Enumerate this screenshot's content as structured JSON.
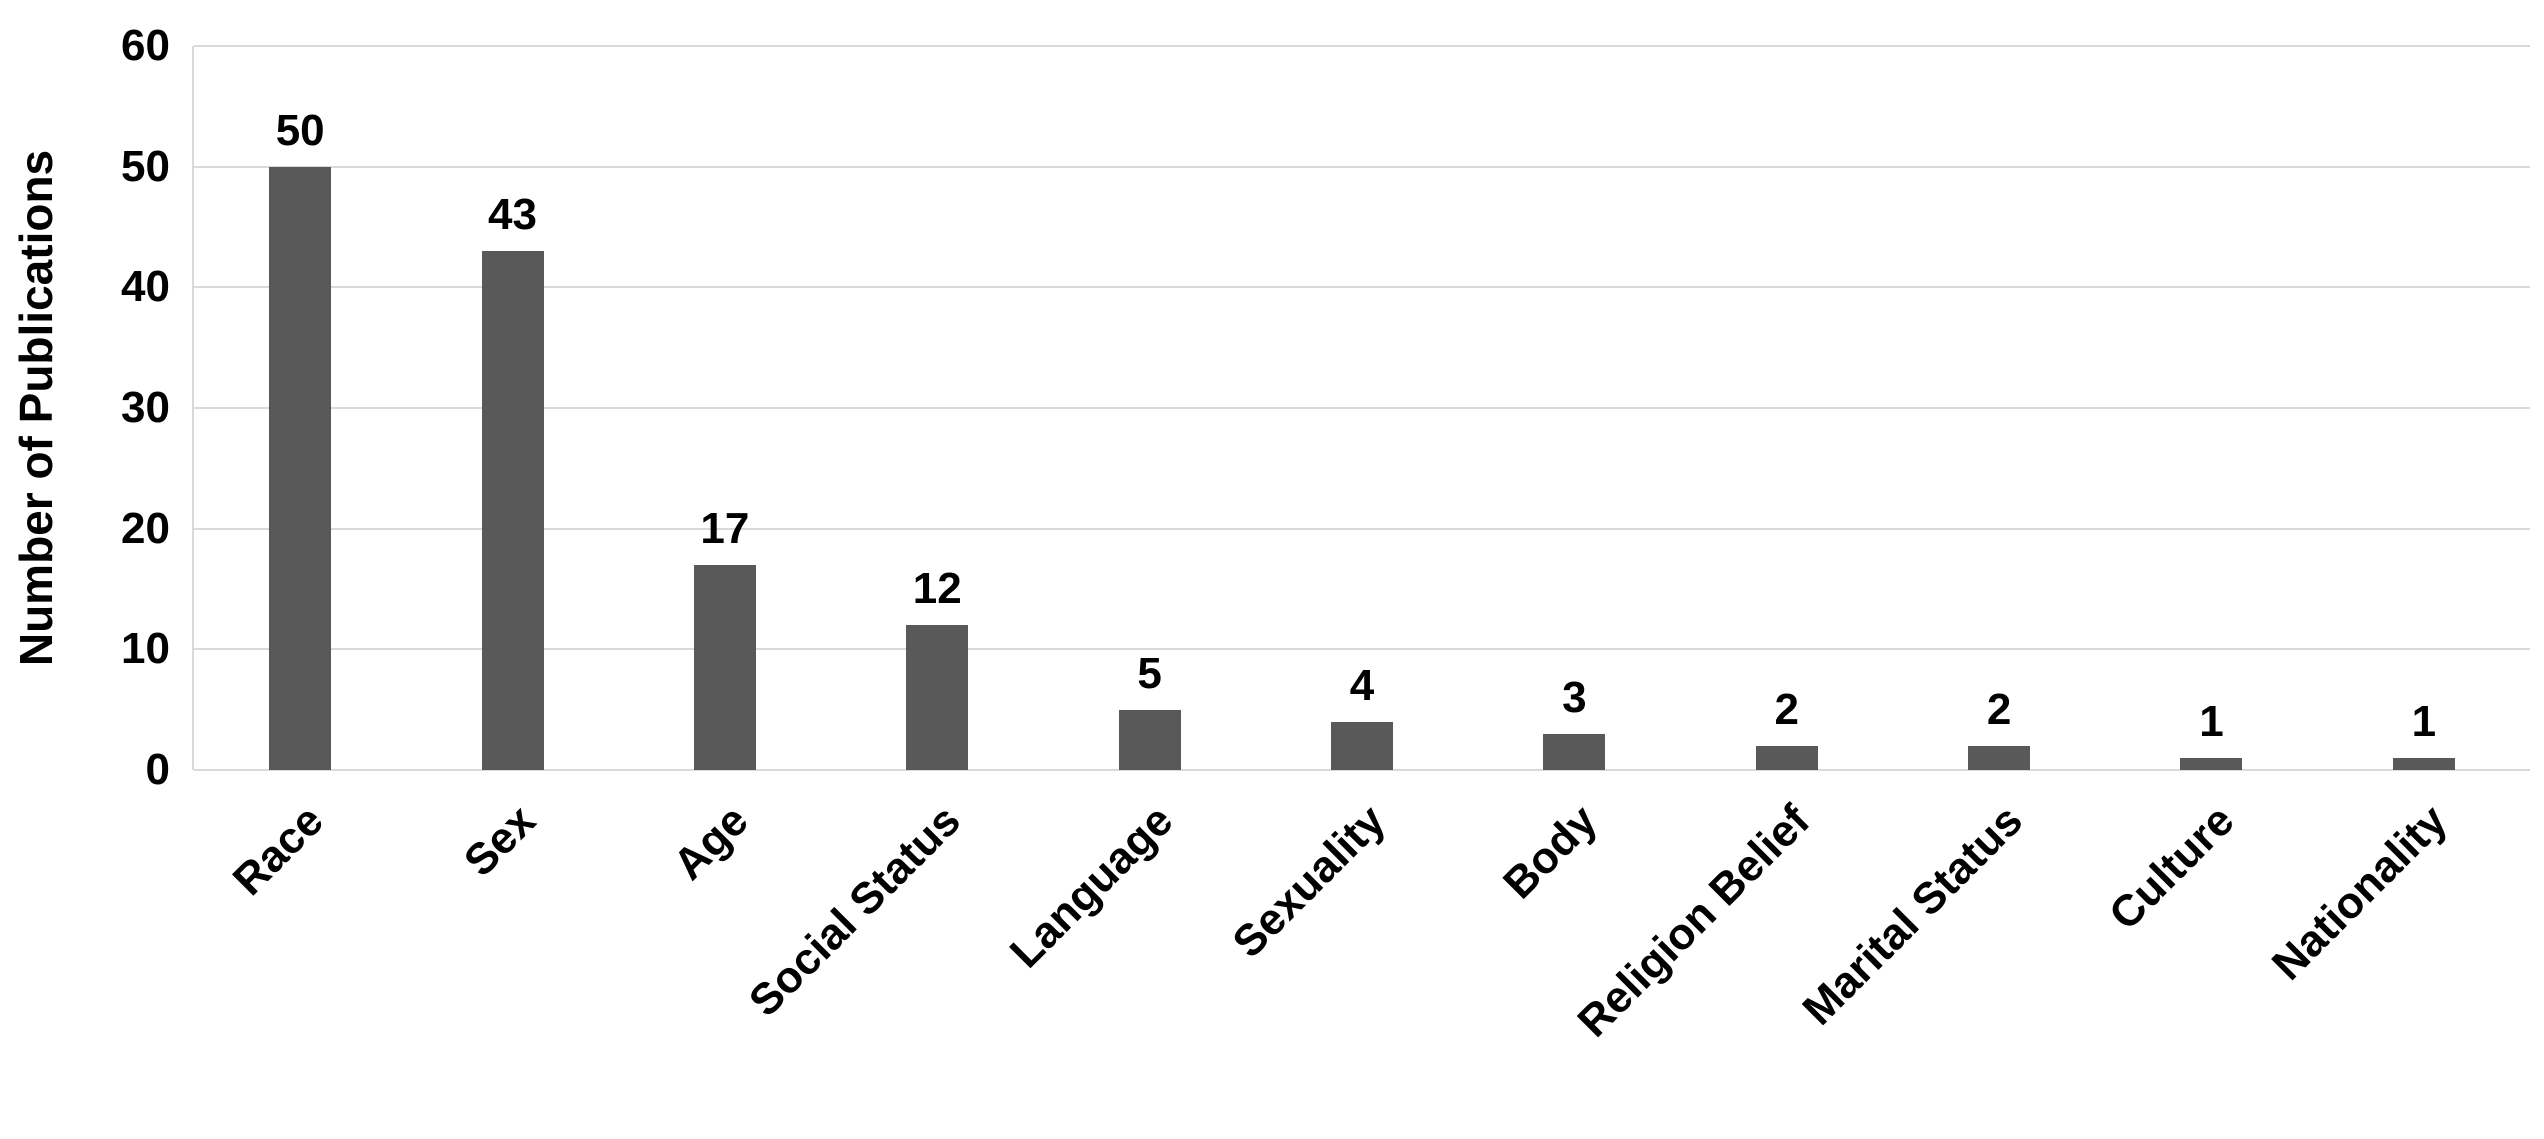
{
  "chart_data": {
    "type": "bar",
    "title": "",
    "categories": [
      "Race",
      "Sex",
      "Age",
      "Social Status",
      "Language",
      "Sexuality",
      "Body",
      "Religion Belief",
      "Marital Status",
      "Culture",
      "Nationality"
    ],
    "values": [
      50,
      43,
      17,
      12,
      5,
      4,
      3,
      2,
      2,
      1,
      1
    ],
    "xlabel": "",
    "ylabel": "Number of Publications",
    "ylim": [
      0,
      60
    ],
    "yticks": [
      0,
      10,
      20,
      30,
      40,
      50,
      60
    ],
    "grid": "horizontal",
    "legend": "none",
    "data_labels": "above-bars",
    "colors": {
      "bar": "#595959",
      "gridline": "#d9d9d9",
      "text": "#000000",
      "background": "#ffffff"
    }
  }
}
